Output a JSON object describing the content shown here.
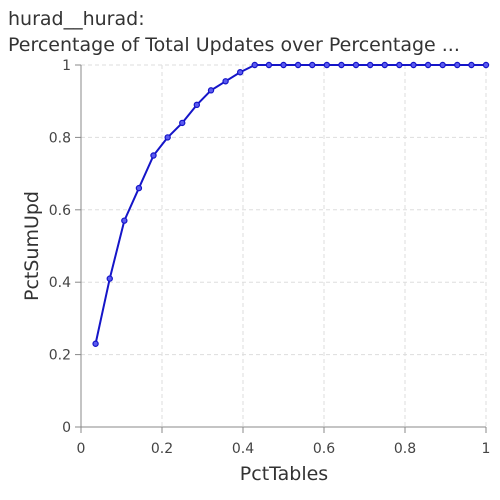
{
  "chart_data": {
    "type": "line",
    "title": "hurad__hurad:",
    "subtitle": "Percentage of Total Updates over Percentage ...",
    "xlabel": "PctTables",
    "ylabel": "PctSumUpd",
    "xlim": [
      0,
      1
    ],
    "ylim": [
      0,
      1
    ],
    "xticks": [
      "0",
      "0.2",
      "0.4",
      "0.6",
      "0.8",
      "1"
    ],
    "yticks": [
      "0",
      "0.2",
      "0.4",
      "0.6",
      "0.8",
      "1"
    ],
    "grid": true,
    "series": [
      {
        "color": "#1515c8",
        "x": [
          0.036,
          0.071,
          0.107,
          0.143,
          0.179,
          0.214,
          0.25,
          0.286,
          0.321,
          0.357,
          0.393,
          0.429,
          0.464,
          0.5,
          0.536,
          0.571,
          0.607,
          0.643,
          0.679,
          0.714,
          0.75,
          0.786,
          0.821,
          0.857,
          0.893,
          0.929,
          0.964,
          1.0
        ],
        "y": [
          0.23,
          0.41,
          0.57,
          0.66,
          0.75,
          0.8,
          0.84,
          0.89,
          0.93,
          0.955,
          0.98,
          1.0,
          1.0,
          1.0,
          1.0,
          1.0,
          1.0,
          1.0,
          1.0,
          1.0,
          1.0,
          1.0,
          1.0,
          1.0,
          1.0,
          1.0,
          1.0,
          1.0
        ]
      }
    ]
  }
}
